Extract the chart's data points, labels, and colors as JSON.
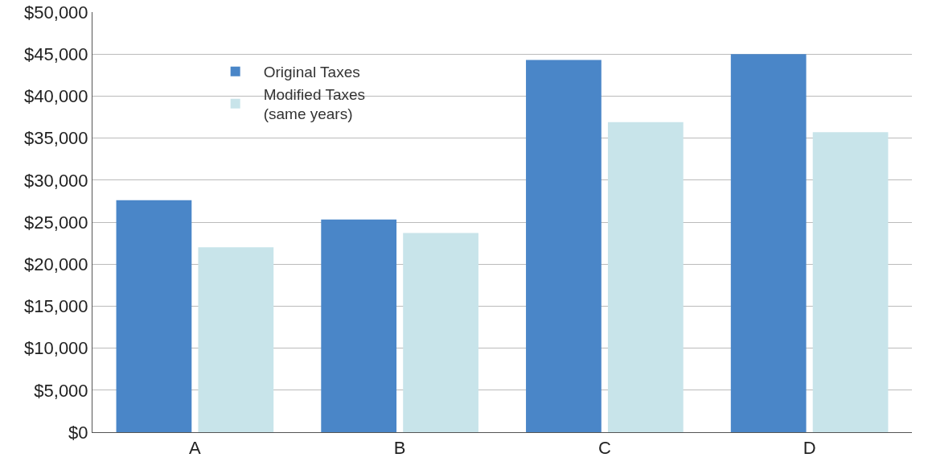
{
  "chart_data": {
    "type": "bar",
    "categories": [
      "A",
      "B",
      "C",
      "D"
    ],
    "series": [
      {
        "name": "Original Taxes",
        "color": "#4a86c8",
        "values": [
          27600,
          25300,
          44300,
          45000
        ]
      },
      {
        "name": "Modified Taxes\n(same years)",
        "color": "#c8e4ea",
        "values": [
          22000,
          23700,
          36900,
          35700
        ]
      }
    ],
    "ylim": [
      0,
      50000
    ],
    "yticks": [
      {
        "value": 0,
        "label": "$0"
      },
      {
        "value": 5000,
        "label": "$5,000"
      },
      {
        "value": 10000,
        "label": "$10,000"
      },
      {
        "value": 15000,
        "label": "$15,000"
      },
      {
        "value": 20000,
        "label": "$20,000"
      },
      {
        "value": 25000,
        "label": "$25,000"
      },
      {
        "value": 30000,
        "label": "$30,000"
      },
      {
        "value": 35000,
        "label": "$35,000"
      },
      {
        "value": 40000,
        "label": "$40,000"
      },
      {
        "value": 45000,
        "label": "$45,000"
      },
      {
        "value": 50000,
        "label": "$50,000"
      }
    ],
    "grid": "y",
    "legend": "top left"
  }
}
